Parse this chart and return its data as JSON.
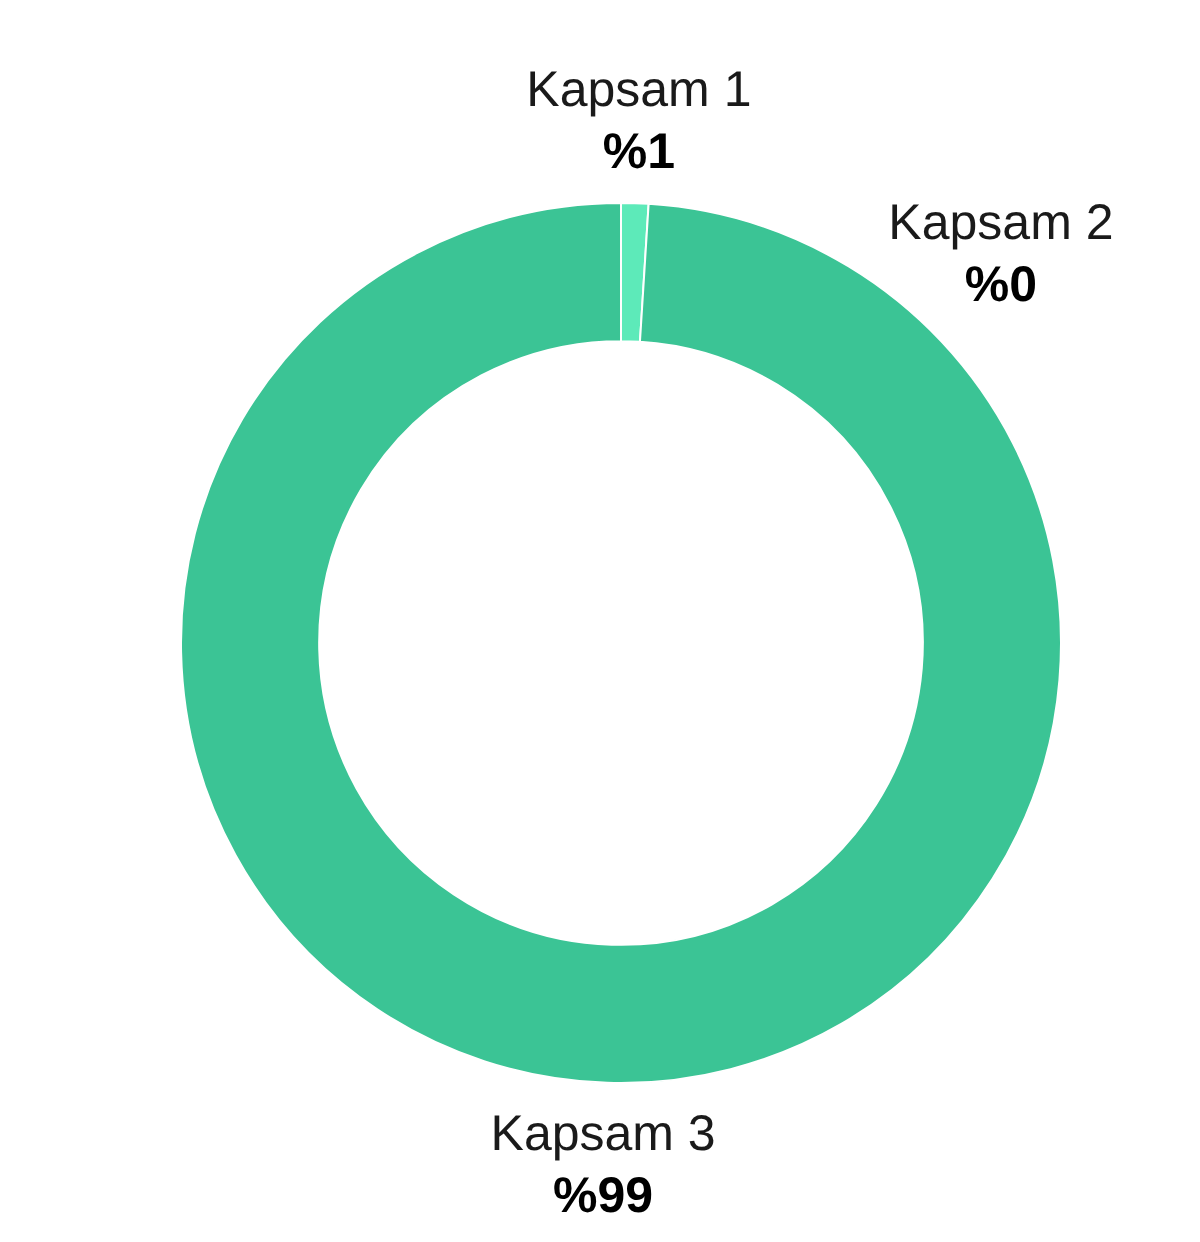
{
  "chart_data": {
    "type": "donut",
    "categories": [
      "Kapsam 1",
      "Kapsam 2",
      "Kapsam 3"
    ],
    "values": [
      1,
      0,
      99
    ],
    "colors": [
      "#5deab9",
      "#4dd8a7",
      "#3bc495"
    ],
    "value_labels": [
      "%1",
      "%0",
      "%99"
    ]
  }
}
